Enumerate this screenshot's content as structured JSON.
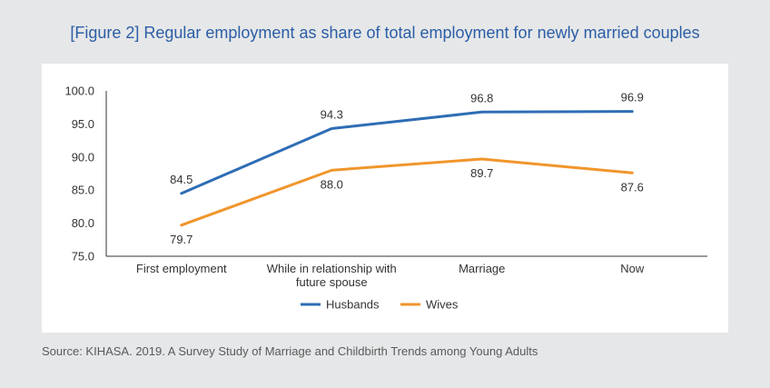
{
  "title": "[Figure 2] Regular employment as share of total employment for newly married couples",
  "source": "Source: KIHASA. 2019. A Survey Study of Marriage and Childbirth Trends among Young Adults",
  "colors": {
    "husbands": "#2e6db4",
    "wives": "#f0962c",
    "axis": "#333333",
    "background": "#e6e7e8"
  },
  "chart_data": {
    "type": "line",
    "title": "[Figure 2] Regular employment as share of total employment for newly married couples",
    "categories": [
      [
        "First employment"
      ],
      [
        "While in relationship with",
        "future spouse"
      ],
      [
        "Marriage"
      ],
      [
        "Now"
      ]
    ],
    "series": [
      {
        "name": "Husbands",
        "values": [
          84.5,
          94.3,
          96.8,
          96.9
        ],
        "color": "#2e6db4"
      },
      {
        "name": "Wives",
        "values": [
          79.7,
          88.0,
          89.7,
          87.6
        ],
        "color": "#f0962c"
      }
    ],
    "ylim": [
      75.0,
      100.0
    ],
    "yticks": [
      "75.0",
      "80.0",
      "85.0",
      "90.0",
      "95.0",
      "100.0"
    ],
    "grid": false,
    "legend": "bottom-center"
  }
}
